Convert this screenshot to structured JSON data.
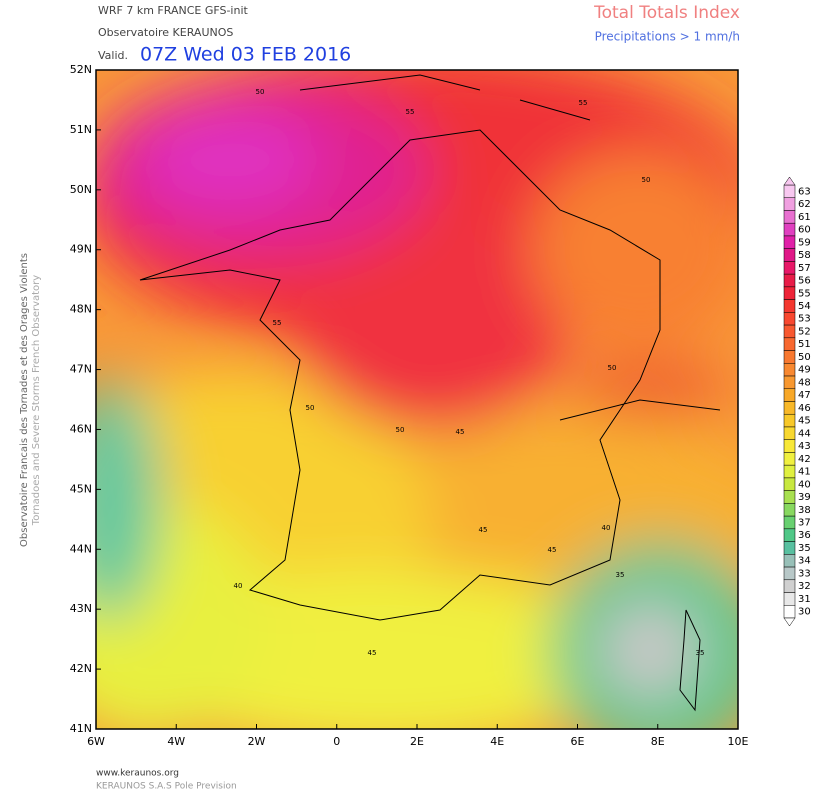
{
  "header": {
    "model": "WRF 7 km FRANCE  GFS-init",
    "observatory": "Observatoire KERAUNOS",
    "valid_prefix": "Valid.",
    "valid": "07Z Wed 03 FEB 2016",
    "title": "Total Totals Index",
    "subtitle": "Precipitations > 1 mm/h"
  },
  "side": {
    "line1": "Observatoire Francais des Tornades et des Orages Violents",
    "line2": "Tornadoes and Severe Storms French Observatory"
  },
  "map": {
    "lat_labels": [
      "52N",
      "51N",
      "50N",
      "49N",
      "48N",
      "47N",
      "46N",
      "45N",
      "44N",
      "43N",
      "42N",
      "41N"
    ],
    "lon_labels": [
      "6W",
      "4W",
      "2W",
      "0",
      "2E",
      "4E",
      "6E",
      "8E",
      "10E"
    ],
    "contour_labels": [
      "50",
      "55",
      "55",
      "50",
      "55",
      "50",
      "50",
      "45",
      "45",
      "45",
      "40",
      "40",
      "45",
      "35",
      "35",
      "50"
    ]
  },
  "colorbar": {
    "labels": [
      "63",
      "62",
      "61",
      "60",
      "59",
      "58",
      "57",
      "56",
      "55",
      "54",
      "53",
      "52",
      "51",
      "50",
      "49",
      "48",
      "47",
      "46",
      "45",
      "44",
      "43",
      "42",
      "41",
      "40",
      "39",
      "38",
      "37",
      "36",
      "35",
      "34",
      "33",
      "32",
      "31",
      "30"
    ],
    "colors": [
      "#f8c8f0",
      "#f0a0e0",
      "#e870d0",
      "#e040c0",
      "#e020a8",
      "#e01888",
      "#e81868",
      "#e81c48",
      "#ee2438",
      "#f43830",
      "#f84830",
      "#f85830",
      "#f86830",
      "#f87830",
      "#f88830",
      "#f89830",
      "#f8a828",
      "#f8b828",
      "#f8c828",
      "#f8d830",
      "#f8e838",
      "#f0f040",
      "#e0f040",
      "#c8e840",
      "#a8e050",
      "#88d860",
      "#68d070",
      "#50c888",
      "#58c0a0",
      "#98c0b8",
      "#b8c8c8",
      "#d0d0d0",
      "#e8e8e8",
      "#ffffff"
    ]
  },
  "footer": {
    "site": "www.keraunos.org",
    "company": "KERAUNOS S.A.S Pole Prevision"
  }
}
